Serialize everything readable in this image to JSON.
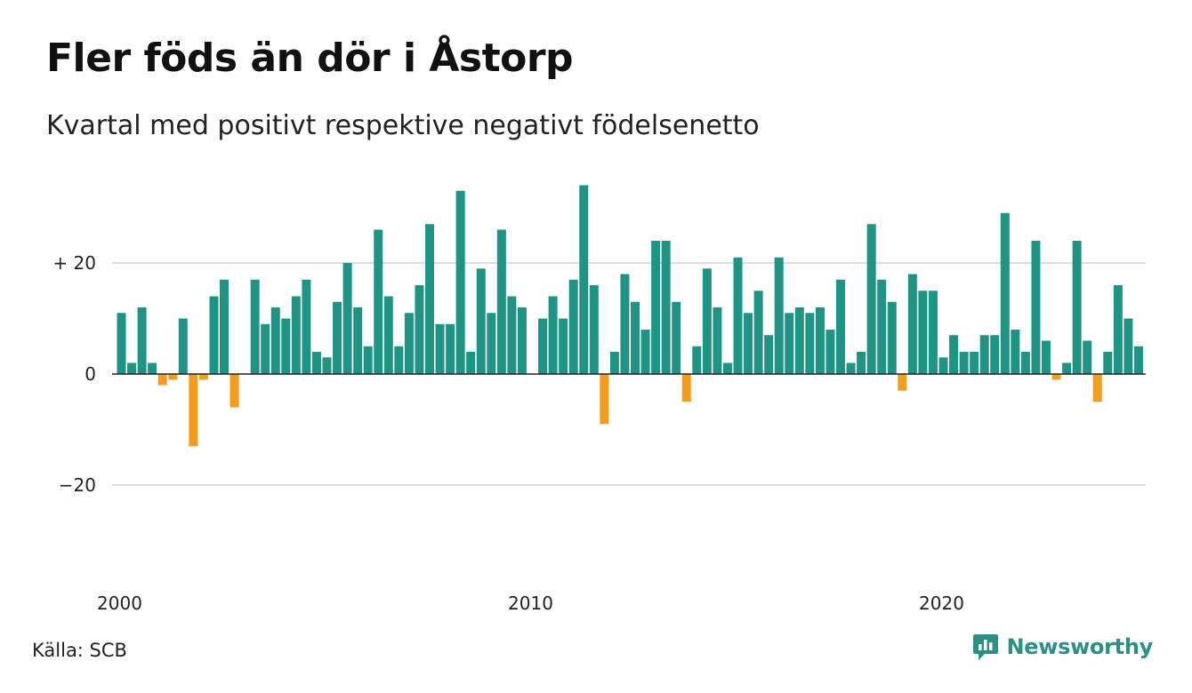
{
  "header": {
    "title": "Fler föds än dör i Åstorp",
    "subtitle": "Kvartal med positivt respektive negativt födelsenetto"
  },
  "footer": {
    "source": "Källa: SCB",
    "brand": "Newsworthy"
  },
  "colors": {
    "positive": "#1f9384",
    "negative": "#f39c1d",
    "grid": "#dddddd",
    "zero_line": "#222222",
    "brand": "#2a9184"
  },
  "icons": {
    "brand_logo": "chart-bubble-icon"
  },
  "chart_data": {
    "type": "bar",
    "title": "Fler föds än dör i Åstorp",
    "subtitle": "Kvartal med positivt respektive negativt födelsenetto",
    "xlabel": "",
    "ylabel": "",
    "ylim": [
      -35,
      35
    ],
    "grid": true,
    "legend": "none",
    "y_ticks": [
      {
        "value": 20,
        "label": "+ 20"
      },
      {
        "value": 0,
        "label": "0"
      },
      {
        "value": -20,
        "label": "−20"
      }
    ],
    "x_tick_labels": [
      "2000",
      "2010",
      "2020"
    ],
    "categories": [
      "2000 Q1",
      "2000 Q2",
      "2000 Q3",
      "2000 Q4",
      "2001 Q1",
      "2001 Q2",
      "2001 Q3",
      "2001 Q4",
      "2002 Q1",
      "2002 Q2",
      "2002 Q3",
      "2002 Q4",
      "2003 Q1",
      "2003 Q2",
      "2003 Q3",
      "2003 Q4",
      "2004 Q1",
      "2004 Q2",
      "2004 Q3",
      "2004 Q4",
      "2005 Q1",
      "2005 Q2",
      "2005 Q3",
      "2005 Q4",
      "2006 Q1",
      "2006 Q2",
      "2006 Q3",
      "2006 Q4",
      "2007 Q1",
      "2007 Q2",
      "2007 Q3",
      "2007 Q4",
      "2008 Q1",
      "2008 Q2",
      "2008 Q3",
      "2008 Q4",
      "2009 Q1",
      "2009 Q2",
      "2009 Q3",
      "2009 Q4",
      "2010 Q1",
      "2010 Q2",
      "2010 Q3",
      "2010 Q4",
      "2011 Q1",
      "2011 Q2",
      "2011 Q3",
      "2011 Q4",
      "2012 Q1",
      "2012 Q2",
      "2012 Q3",
      "2012 Q4",
      "2013 Q1",
      "2013 Q2",
      "2013 Q3",
      "2013 Q4",
      "2014 Q1",
      "2014 Q2",
      "2014 Q3",
      "2014 Q4",
      "2015 Q1",
      "2015 Q2",
      "2015 Q3",
      "2015 Q4",
      "2016 Q1",
      "2016 Q2",
      "2016 Q3",
      "2016 Q4",
      "2017 Q1",
      "2017 Q2",
      "2017 Q3",
      "2017 Q4",
      "2018 Q1",
      "2018 Q2",
      "2018 Q3",
      "2018 Q4",
      "2019 Q1",
      "2019 Q2",
      "2019 Q3",
      "2019 Q4",
      "2020 Q1",
      "2020 Q2",
      "2020 Q3",
      "2020 Q4",
      "2021 Q1",
      "2021 Q2",
      "2021 Q3",
      "2021 Q4",
      "2022 Q1",
      "2022 Q2",
      "2022 Q3",
      "2022 Q4",
      "2023 Q1",
      "2023 Q2",
      "2023 Q3",
      "2023 Q4",
      "2024 Q1",
      "2024 Q2",
      "2024 Q3",
      "2024 Q4"
    ],
    "values": [
      11,
      2,
      12,
      2,
      -2,
      -1,
      10,
      -13,
      -1,
      14,
      17,
      -6,
      0,
      17,
      9,
      12,
      10,
      14,
      17,
      4,
      3,
      13,
      20,
      12,
      5,
      26,
      14,
      5,
      11,
      16,
      27,
      9,
      9,
      33,
      4,
      19,
      11,
      26,
      14,
      12,
      0,
      10,
      14,
      10,
      17,
      34,
      16,
      -9,
      4,
      18,
      13,
      8,
      24,
      24,
      13,
      -5,
      5,
      19,
      12,
      2,
      21,
      11,
      15,
      7,
      21,
      11,
      12,
      11,
      12,
      8,
      17,
      2,
      4,
      27,
      17,
      13,
      -3,
      18,
      15,
      15,
      3,
      7,
      4,
      4,
      7,
      7,
      29,
      8,
      4,
      24,
      6,
      -1,
      2,
      24,
      6,
      -5,
      4,
      16,
      10,
      5
    ]
  }
}
